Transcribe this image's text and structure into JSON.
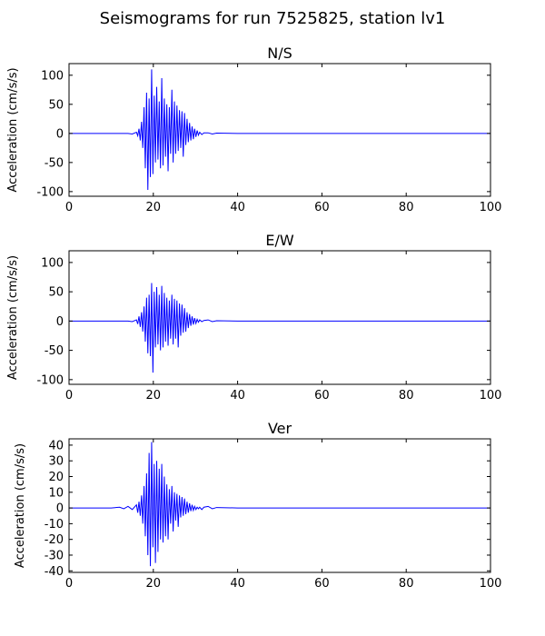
{
  "figure": {
    "title": "Seismograms for run 7525825, station lv1"
  },
  "colors": {
    "trace": "#0000ff",
    "axes": "#000000",
    "background": "#ffffff"
  },
  "chart_data": [
    {
      "type": "line",
      "title": "N/S",
      "xlabel": "",
      "ylabel": "Acceleration (cm/s/s)",
      "xlim": [
        0,
        100
      ],
      "ylim": [
        -108,
        120
      ],
      "xticks": [
        0,
        20,
        40,
        60,
        80,
        100
      ],
      "yticks": [
        -100,
        -50,
        0,
        50,
        100
      ],
      "grid": false,
      "series": [
        {
          "x": [
            0,
            10,
            14,
            15,
            16,
            16.3,
            16.6,
            16.9,
            17.2,
            17.5,
            17.8,
            18.1,
            18.4,
            18.7,
            19.0,
            19.3,
            19.6,
            19.9,
            20.2,
            20.5,
            20.8,
            21.1,
            21.4,
            21.7,
            22.0,
            22.3,
            22.6,
            22.9,
            23.2,
            23.5,
            23.8,
            24.1,
            24.4,
            24.7,
            25.0,
            25.3,
            25.6,
            25.9,
            26.2,
            26.5,
            26.8,
            27.1,
            27.4,
            27.7,
            28.0,
            28.3,
            28.6,
            28.9,
            29.2,
            29.5,
            29.8,
            30.1,
            30.4,
            30.7,
            31.0,
            31.5,
            32,
            33,
            34,
            35,
            40,
            50,
            100
          ],
          "y": [
            0,
            0,
            0,
            -1,
            2,
            -4,
            8,
            -12,
            20,
            -25,
            45,
            -60,
            70,
            -97,
            60,
            -75,
            110,
            -70,
            65,
            -50,
            80,
            -45,
            55,
            -60,
            95,
            -55,
            60,
            -40,
            50,
            -65,
            45,
            -35,
            75,
            -50,
            55,
            -35,
            48,
            -30,
            40,
            -25,
            38,
            -40,
            35,
            -20,
            25,
            -15,
            18,
            -12,
            12,
            -10,
            8,
            -6,
            5,
            -3,
            2,
            -2,
            1,
            1,
            -1,
            0.5,
            0,
            0,
            0
          ]
        }
      ]
    },
    {
      "type": "line",
      "title": "E/W",
      "xlabel": "",
      "ylabel": "Acceleration (cm/s/s)",
      "xlim": [
        0,
        100
      ],
      "ylim": [
        -108,
        120
      ],
      "xticks": [
        0,
        20,
        40,
        60,
        80,
        100
      ],
      "yticks": [
        -100,
        -50,
        0,
        50,
        100
      ],
      "grid": false,
      "series": [
        {
          "x": [
            0,
            10,
            14,
            15,
            16,
            16.3,
            16.6,
            16.9,
            17.2,
            17.5,
            17.8,
            18.1,
            18.4,
            18.7,
            19.0,
            19.3,
            19.6,
            19.9,
            20.2,
            20.5,
            20.8,
            21.1,
            21.4,
            21.7,
            22.0,
            22.3,
            22.6,
            22.9,
            23.2,
            23.5,
            23.8,
            24.1,
            24.4,
            24.7,
            25.0,
            25.3,
            25.6,
            25.9,
            26.2,
            26.5,
            26.8,
            27.1,
            27.4,
            27.7,
            28.0,
            28.3,
            28.6,
            28.9,
            29.2,
            29.5,
            29.8,
            30.1,
            30.4,
            30.7,
            31.0,
            31.5,
            32,
            33,
            34,
            35,
            40,
            50,
            100
          ],
          "y": [
            0,
            0,
            0,
            -1,
            2,
            -5,
            8,
            -10,
            15,
            -18,
            25,
            -35,
            40,
            -55,
            45,
            -60,
            65,
            -88,
            50,
            -45,
            58,
            -40,
            45,
            -50,
            60,
            -45,
            48,
            -35,
            40,
            -42,
            35,
            -30,
            45,
            -40,
            38,
            -30,
            35,
            -45,
            30,
            -25,
            28,
            -20,
            22,
            -18,
            15,
            -12,
            12,
            -8,
            8,
            -6,
            5,
            -4,
            3,
            -2,
            2,
            -1,
            1,
            2,
            -1,
            0.5,
            0,
            0,
            0
          ]
        }
      ]
    },
    {
      "type": "line",
      "title": "Ver",
      "xlabel": "",
      "ylabel": "Acceleration (cm/s/s)",
      "xlim": [
        0,
        100
      ],
      "ylim": [
        -41,
        44
      ],
      "xticks": [
        0,
        20,
        40,
        60,
        80,
        100
      ],
      "yticks": [
        -40,
        -30,
        -20,
        -10,
        0,
        10,
        20,
        30,
        40
      ],
      "grid": false,
      "series": [
        {
          "x": [
            0,
            10,
            12,
            13,
            14,
            15,
            16,
            16.3,
            16.6,
            16.9,
            17.2,
            17.5,
            17.8,
            18.1,
            18.4,
            18.7,
            19.0,
            19.3,
            19.6,
            19.9,
            20.2,
            20.5,
            20.8,
            21.1,
            21.4,
            21.7,
            22.0,
            22.3,
            22.6,
            22.9,
            23.2,
            23.5,
            23.8,
            24.1,
            24.4,
            24.7,
            25.0,
            25.3,
            25.6,
            25.9,
            26.2,
            26.5,
            26.8,
            27.1,
            27.4,
            27.7,
            28.0,
            28.3,
            28.6,
            28.9,
            29.2,
            29.5,
            29.8,
            30.1,
            30.4,
            30.7,
            31.0,
            31.5,
            32,
            33,
            34,
            35,
            40,
            50,
            100
          ],
          "y": [
            0,
            0,
            0.5,
            -0.5,
            1,
            -1,
            2,
            -3,
            4,
            -5,
            8,
            -10,
            14,
            -18,
            22,
            -30,
            35,
            -37,
            42,
            -25,
            28,
            -35,
            30,
            -28,
            25,
            -20,
            28,
            -22,
            20,
            -18,
            15,
            -20,
            12,
            -10,
            14,
            -15,
            10,
            -8,
            9,
            -12,
            8,
            -6,
            7,
            -5,
            6,
            -4,
            4,
            -3,
            3,
            -2,
            2,
            -1.5,
            1,
            -1,
            0.5,
            -0.5,
            0.5,
            -1,
            0.5,
            1,
            -0.5,
            0.3,
            0,
            0,
            0
          ]
        }
      ]
    }
  ]
}
